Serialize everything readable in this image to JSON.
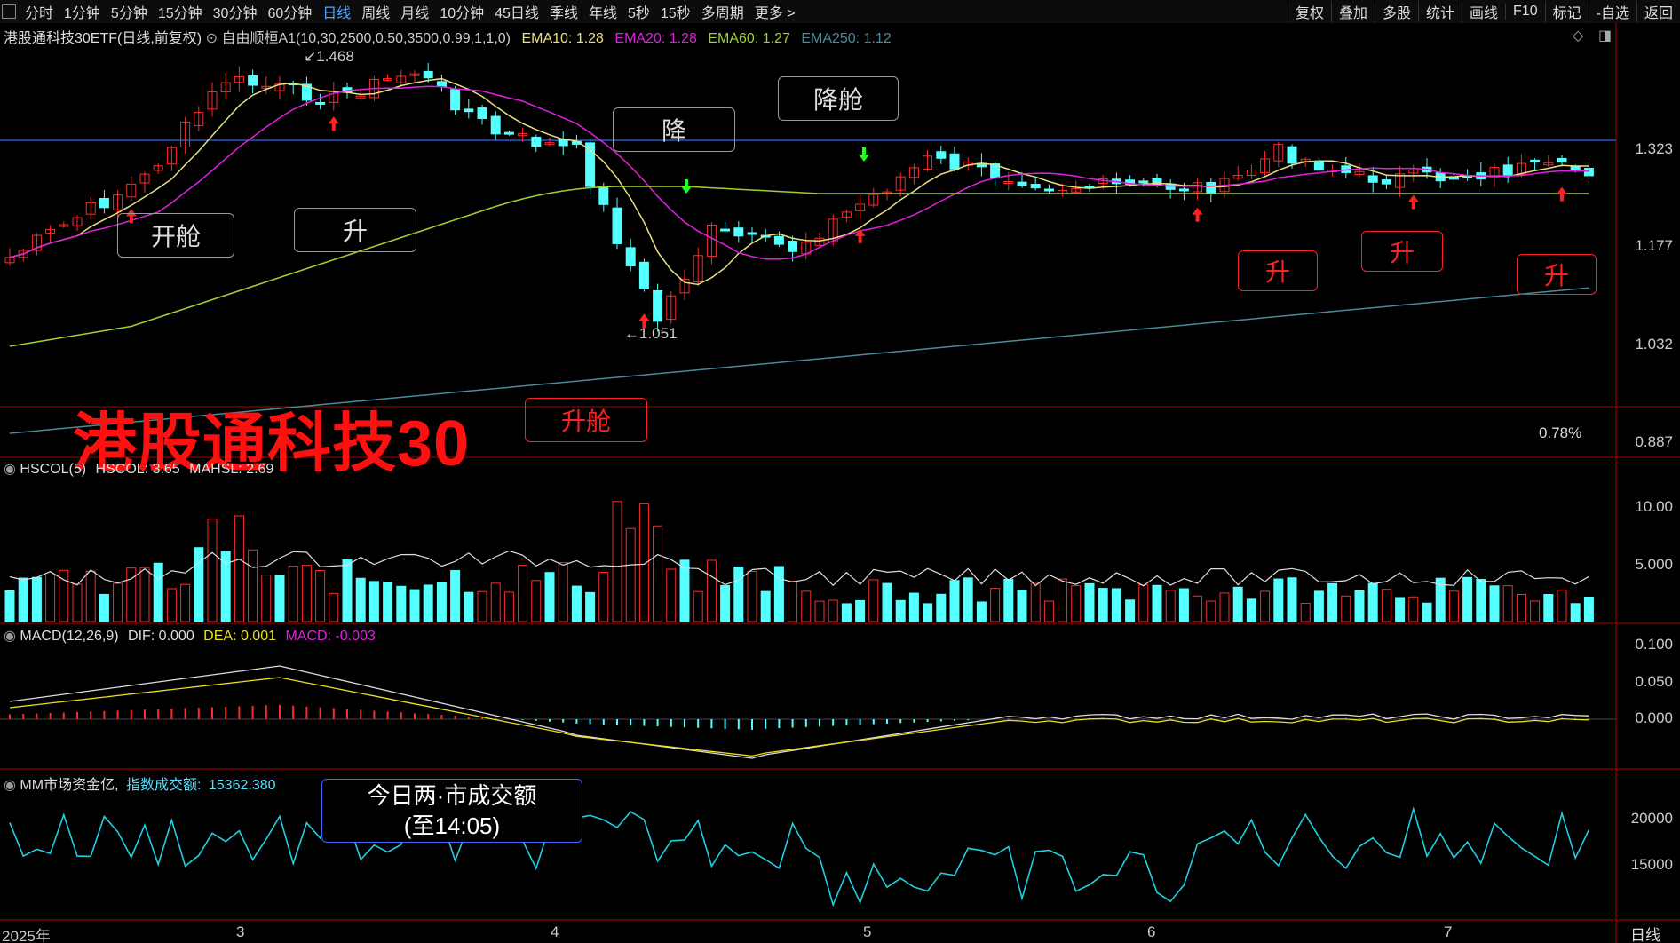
{
  "toolbar": {
    "periods": [
      "分时",
      "1分钟",
      "5分钟",
      "15分钟",
      "30分钟",
      "60分钟",
      "日线",
      "周线",
      "月线",
      "10分钟",
      "45日线",
      "季线",
      "年线",
      "5秒",
      "15秒",
      "多周期",
      "更多 >"
    ],
    "active_period": "日线",
    "tools": [
      "复权",
      "叠加",
      "多股",
      "统计",
      "画线",
      "F10",
      "标记",
      "-自选",
      "返回"
    ]
  },
  "main_legend": {
    "title": "港股通科技30ETF(日线,前复权)",
    "indicator": "自由顺桓A1(10,30,2500,0.50,3500,0.99,1,1,0)",
    "ema10": "EMA10: 1.28",
    "ema20": "EMA20: 1.28",
    "ema60": "EMA60: 1.27",
    "ema250": "EMA250: 1.12"
  },
  "price_axis": [
    "1.323",
    "1.177",
    "1.032",
    "0.887"
  ],
  "percent_label": "0.78%",
  "high_label": "1.468",
  "low_label": "1.051",
  "annotations": {
    "kaicang": "开舱",
    "sheng1": "升",
    "jiang": "降",
    "jiangcang": "降舱",
    "shengcang": "升舱",
    "sheng_red": "升",
    "watermark": "港股通科技30",
    "turnover_line1": "今日两·市成交额",
    "turnover_line2": "(至14:05)"
  },
  "hscol_legend": {
    "name": "HSCOL(5)",
    "hscol": "HSCOL: 3.65",
    "mahsl": "MAHSL: 2.69"
  },
  "hscol_axis": [
    "10.00",
    "5.000"
  ],
  "macd_legend": {
    "name": "MACD(12,26,9)",
    "dif": "DIF: 0.000",
    "dea": "DEA: 0.001",
    "macd": "MACD: -0.003"
  },
  "macd_axis": [
    "0.100",
    "0.050",
    "0.000"
  ],
  "mm_legend": {
    "name": "MM市场资金亿,",
    "index_label": "指数成交额:",
    "index_value": "15362.380"
  },
  "mm_axis": [
    "20000",
    "15000"
  ],
  "time_axis": [
    "2025年",
    "3",
    "4",
    "5",
    "6",
    "7"
  ],
  "footer_label": "日线",
  "colors": {
    "up": "#ff2a2a",
    "down": "#54ffff",
    "ema10": "#e8e080",
    "ema20": "#e020e0",
    "ema60": "#a0d030",
    "ema250": "#4a8a9a",
    "grid_red": "#b00000"
  }
}
